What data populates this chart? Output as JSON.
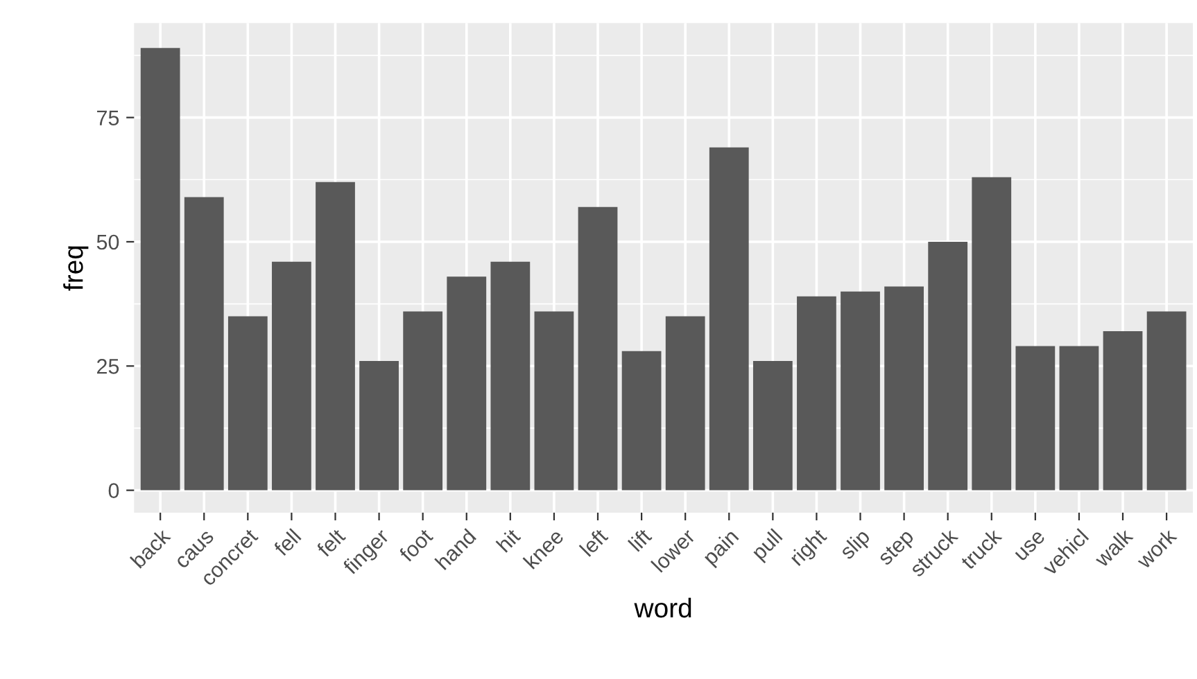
{
  "chart_data": {
    "type": "bar",
    "xlabel": "word",
    "ylabel": "freq",
    "categories": [
      "back",
      "caus",
      "concret",
      "fell",
      "felt",
      "finger",
      "foot",
      "hand",
      "hit",
      "knee",
      "left",
      "lift",
      "lower",
      "pain",
      "pull",
      "right",
      "slip",
      "step",
      "struck",
      "truck",
      "use",
      "vehicl",
      "walk",
      "work"
    ],
    "values": [
      89,
      59,
      35,
      46,
      62,
      26,
      36,
      43,
      46,
      36,
      57,
      28,
      35,
      69,
      26,
      39,
      40,
      41,
      50,
      63,
      29,
      29,
      32,
      36
    ],
    "color": "#595959",
    "ylim": [
      -4.5,
      94
    ],
    "yticks": [
      0,
      25,
      50,
      75
    ],
    "grid": true
  }
}
